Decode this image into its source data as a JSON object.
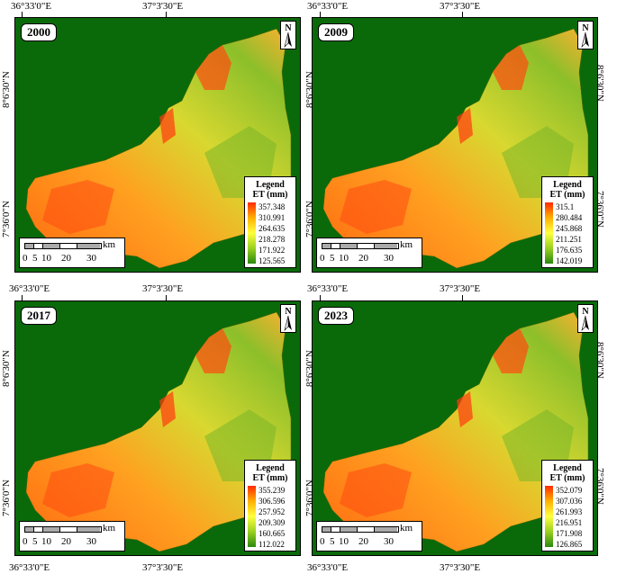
{
  "coords": {
    "lon_west": "36°33'0\"E",
    "lon_mid": "37°3'30\"E",
    "lat_north": "8°6'30\"N",
    "lat_south": "7°36'0\"N"
  },
  "panels": [
    {
      "year": "2000",
      "legend_title": "Legend",
      "legend_unit": "ET (mm)",
      "values": [
        "357.348",
        "310.991",
        "264.635",
        "218.278",
        "171.922",
        "125.565"
      ]
    },
    {
      "year": "2009",
      "legend_title": "Legend",
      "legend_unit": "ET (mm)",
      "values": [
        "315.1",
        "280.484",
        "245.868",
        "211.251",
        "176.635",
        "142.019"
      ]
    },
    {
      "year": "2017",
      "legend_title": "Legend",
      "legend_unit": "ET (mm)",
      "values": [
        "355.239",
        "306.596",
        "257.952",
        "209.309",
        "160.665",
        "112.022"
      ]
    },
    {
      "year": "2023",
      "legend_title": "Legend",
      "legend_unit": "ET (mm)",
      "values": [
        "352.079",
        "307.036",
        "261.993",
        "216.951",
        "171.908",
        "126.865"
      ]
    }
  ],
  "scale": {
    "unit": "km",
    "labels": [
      "0",
      "5",
      "10",
      "20",
      "30"
    ]
  },
  "north_label": "N",
  "colors": {
    "background": "#0a6a0a",
    "high": "#ff2a00",
    "mid": "#ffff40",
    "low": "#2a8a10"
  }
}
